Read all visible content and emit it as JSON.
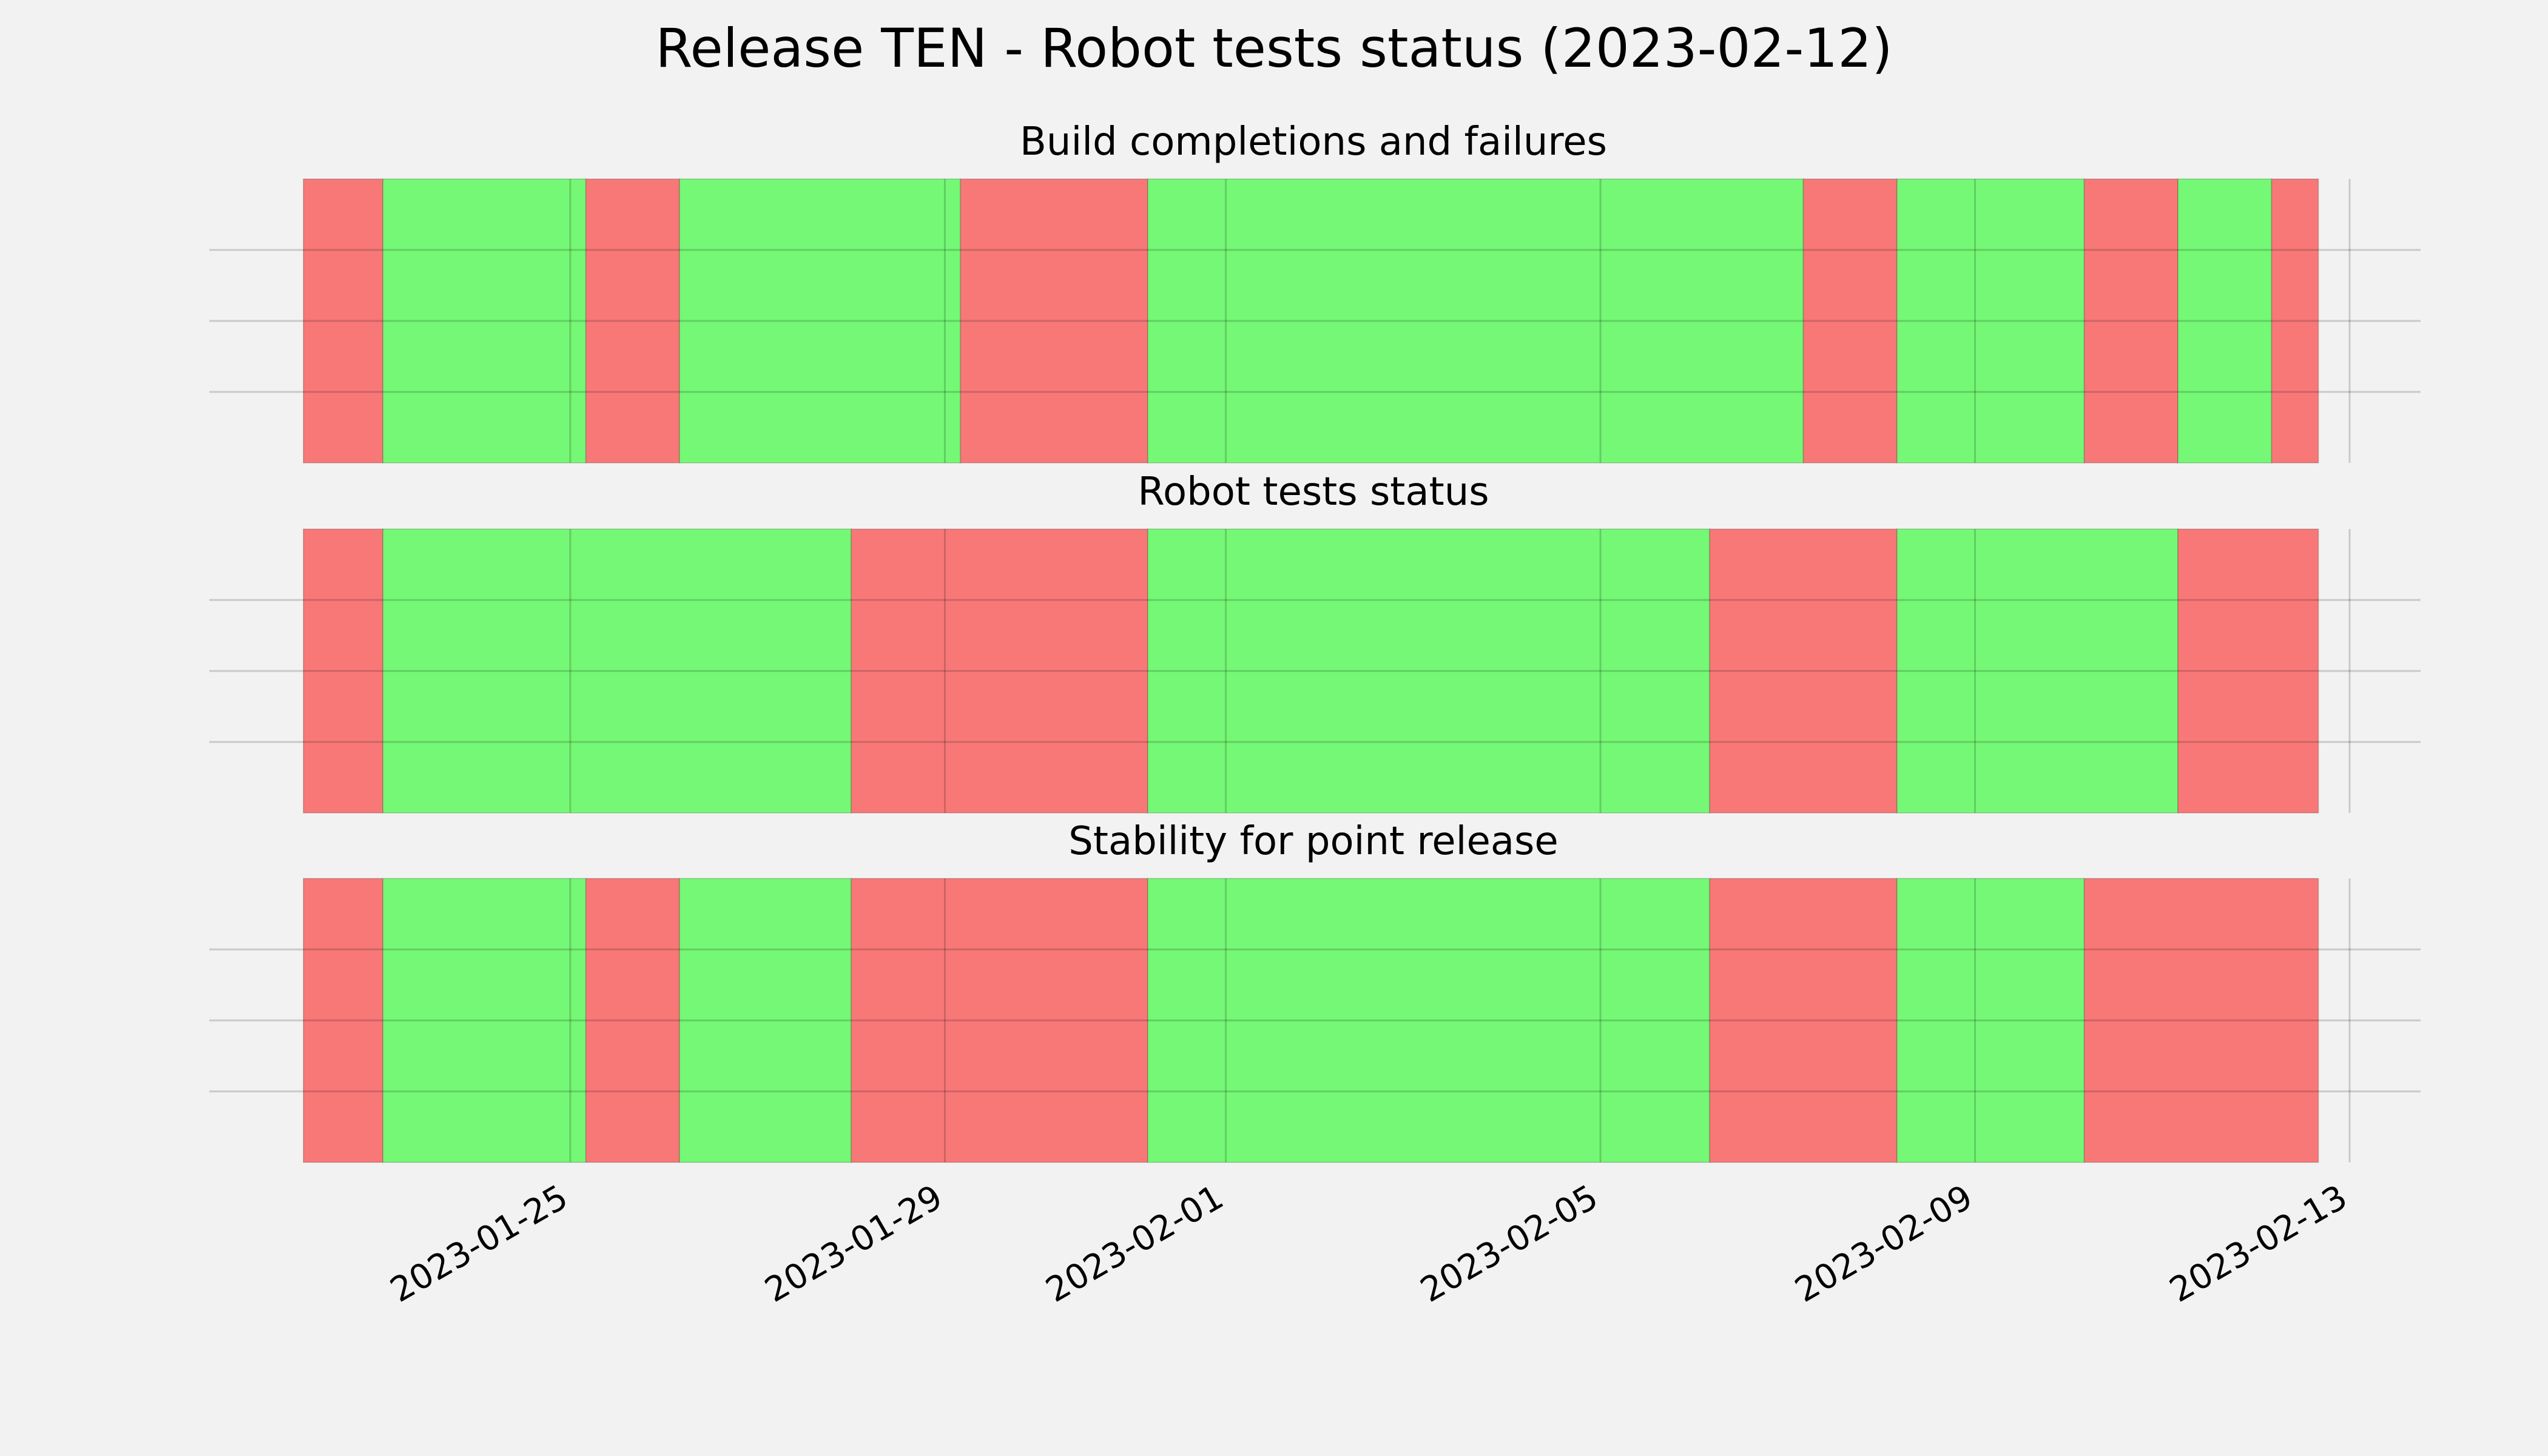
{
  "chart_data": {
    "type": "timeline",
    "title": "Release TEN - Robot tests status (2023-02-12)",
    "x_range": [
      "2023-01-22",
      "2023-02-13"
    ],
    "x_ticks": [
      "2023-01-25",
      "2023-01-29",
      "2023-02-01",
      "2023-02-05",
      "2023-02-09",
      "2023-02-13"
    ],
    "y_gridlines": 3,
    "grid": true,
    "colors": {
      "success": "#75f875",
      "failure": "#f87878"
    },
    "panels": [
      {
        "title": "Build completions and failures",
        "segments": [
          {
            "start": "2023-01-22",
            "end": "2023-01-23",
            "status": "failure"
          },
          {
            "start": "2023-01-23",
            "end": "2023-01-25T04:00",
            "status": "success"
          },
          {
            "start": "2023-01-25T04:00",
            "end": "2023-01-26T04:00",
            "status": "failure"
          },
          {
            "start": "2023-01-26T04:00",
            "end": "2023-01-29T04:00",
            "status": "success"
          },
          {
            "start": "2023-01-29T04:00",
            "end": "2023-01-31T04:00",
            "status": "failure"
          },
          {
            "start": "2023-01-31T04:00",
            "end": "2023-02-07T04:00",
            "status": "success"
          },
          {
            "start": "2023-02-07T04:00",
            "end": "2023-02-08T04:00",
            "status": "failure"
          },
          {
            "start": "2023-02-08T04:00",
            "end": "2023-02-10T04:00",
            "status": "success"
          },
          {
            "start": "2023-02-10T04:00",
            "end": "2023-02-11T04:00",
            "status": "failure"
          },
          {
            "start": "2023-02-11T04:00",
            "end": "2023-02-12T04:00",
            "status": "success"
          },
          {
            "start": "2023-02-12T04:00",
            "end": "2023-02-12T16:00",
            "status": "failure"
          }
        ]
      },
      {
        "title": "Robot tests status",
        "segments": [
          {
            "start": "2023-01-22",
            "end": "2023-01-23",
            "status": "failure"
          },
          {
            "start": "2023-01-23",
            "end": "2023-01-28",
            "status": "success"
          },
          {
            "start": "2023-01-28",
            "end": "2023-01-31T04:00",
            "status": "failure"
          },
          {
            "start": "2023-01-31T04:00",
            "end": "2023-02-06T04:00",
            "status": "success"
          },
          {
            "start": "2023-02-06T04:00",
            "end": "2023-02-08T04:00",
            "status": "failure"
          },
          {
            "start": "2023-02-08T04:00",
            "end": "2023-02-11T04:00",
            "status": "success"
          },
          {
            "start": "2023-02-11T04:00",
            "end": "2023-02-12T16:00",
            "status": "failure"
          }
        ]
      },
      {
        "title": "Stability for point release",
        "segments": [
          {
            "start": "2023-01-22",
            "end": "2023-01-23",
            "status": "failure"
          },
          {
            "start": "2023-01-23",
            "end": "2023-01-25T04:00",
            "status": "success"
          },
          {
            "start": "2023-01-25T04:00",
            "end": "2023-01-26T04:00",
            "status": "failure"
          },
          {
            "start": "2023-01-26T04:00",
            "end": "2023-01-28",
            "status": "success"
          },
          {
            "start": "2023-01-28",
            "end": "2023-01-31T04:00",
            "status": "failure"
          },
          {
            "start": "2023-01-31T04:00",
            "end": "2023-02-06T04:00",
            "status": "success"
          },
          {
            "start": "2023-02-06T04:00",
            "end": "2023-02-08T04:00",
            "status": "failure"
          },
          {
            "start": "2023-02-08T04:00",
            "end": "2023-02-10T04:00",
            "status": "success"
          },
          {
            "start": "2023-02-10T04:00",
            "end": "2023-02-12T16:00",
            "status": "failure"
          }
        ]
      }
    ]
  }
}
